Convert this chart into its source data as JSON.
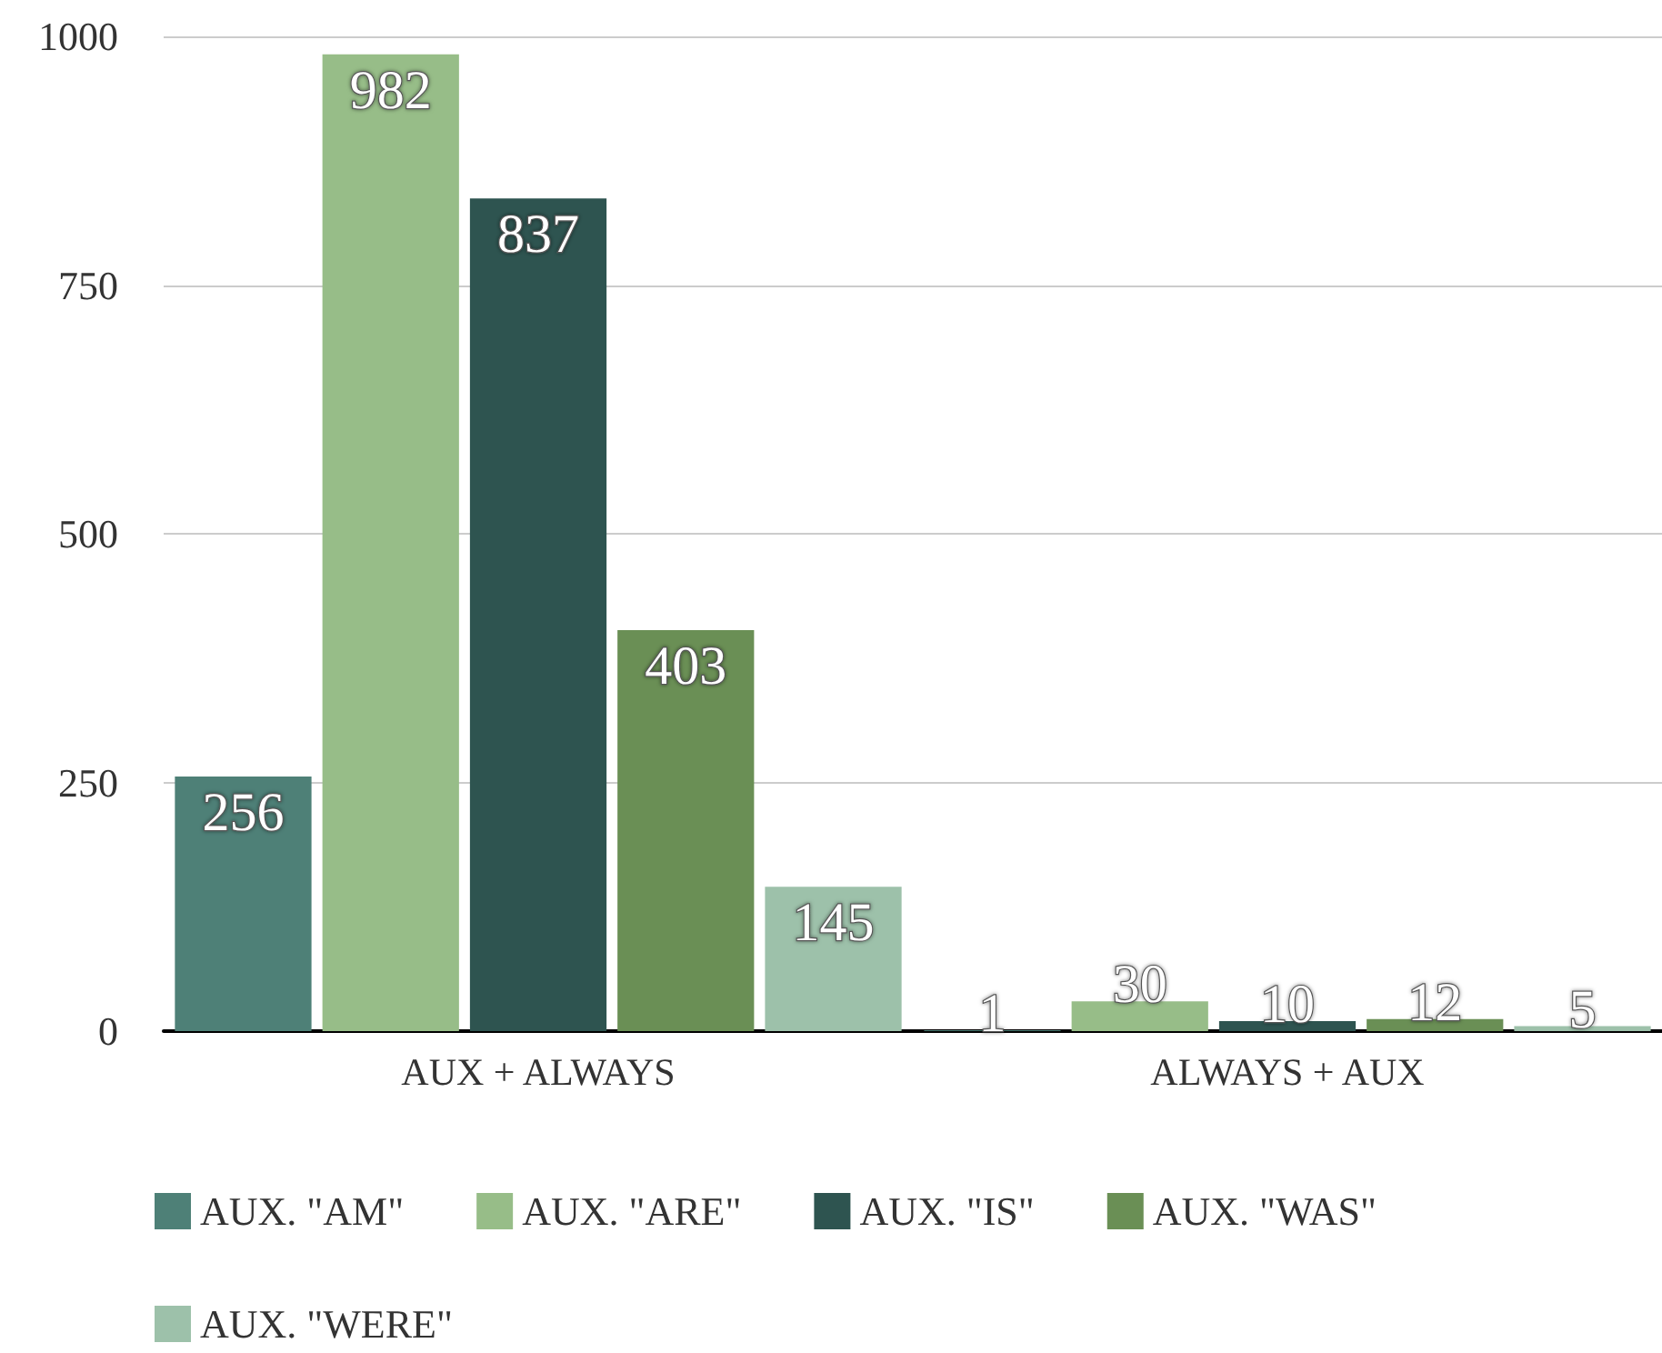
{
  "chart_data": {
    "type": "bar",
    "categories": [
      "AUX + ALWAYS",
      "ALWAYS + AUX"
    ],
    "series": [
      {
        "name": "AUX. \"AM\"",
        "color": "#4e8077",
        "values": [
          256,
          1
        ]
      },
      {
        "name": "AUX. \"ARE\"",
        "color": "#97bd88",
        "values": [
          982,
          30
        ]
      },
      {
        "name": "AUX. \"IS\"",
        "color": "#2e5450",
        "values": [
          837,
          10
        ]
      },
      {
        "name": "AUX. \"WAS\"",
        "color": "#6a8f55",
        "values": [
          403,
          12
        ]
      },
      {
        "name": "AUX. \"WERE\"",
        "color": "#9dc1aa",
        "values": [
          145,
          5
        ]
      }
    ],
    "ylim": [
      0,
      1000
    ],
    "yticks": [
      0,
      250,
      500,
      750,
      1000
    ],
    "grid": "y",
    "legend": "bottom left",
    "data_labels": true
  }
}
